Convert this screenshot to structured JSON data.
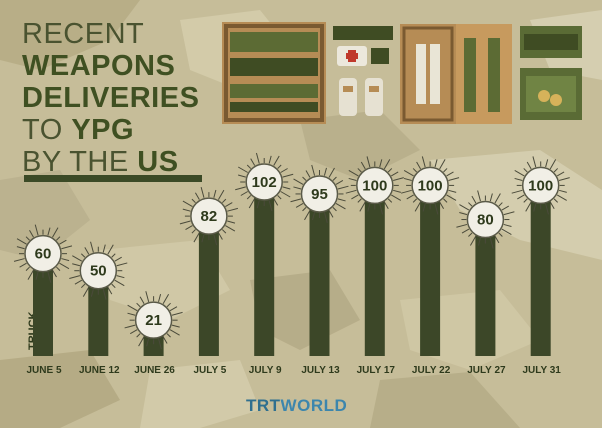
{
  "title": {
    "line1": "RECENT",
    "line2": "WEAPONS",
    "line3": "DELIVERIES",
    "line4_prefix": "TO",
    "line4_accent": "YPG",
    "line5_prefix": "BY THE",
    "line5_accent": "US"
  },
  "brand": {
    "trt": "TRT",
    "world": "WORLD"
  },
  "colors": {
    "bar": "#3c4728",
    "circle": "#f1efe6",
    "text_dark": "#2e3a1c",
    "bg": "#c8bf9c"
  },
  "icons": [
    "weapons-crate-icon",
    "medical-kit-icon",
    "missile-crate-icon",
    "ammo-box-icon"
  ],
  "chart_data": {
    "type": "bar",
    "categories": [
      "JUNE 5",
      "JUNE 12",
      "JUNE 26",
      "JULY 5",
      "JULY 9",
      "JULY 13",
      "JULY 17",
      "JULY 22",
      "JULY 27",
      "JULY 31"
    ],
    "values": [
      60,
      50,
      21,
      82,
      102,
      95,
      100,
      100,
      80,
      100
    ],
    "ylabel": "TRUCK",
    "ylim": [
      0,
      110
    ],
    "grid": false,
    "legend": "none"
  }
}
